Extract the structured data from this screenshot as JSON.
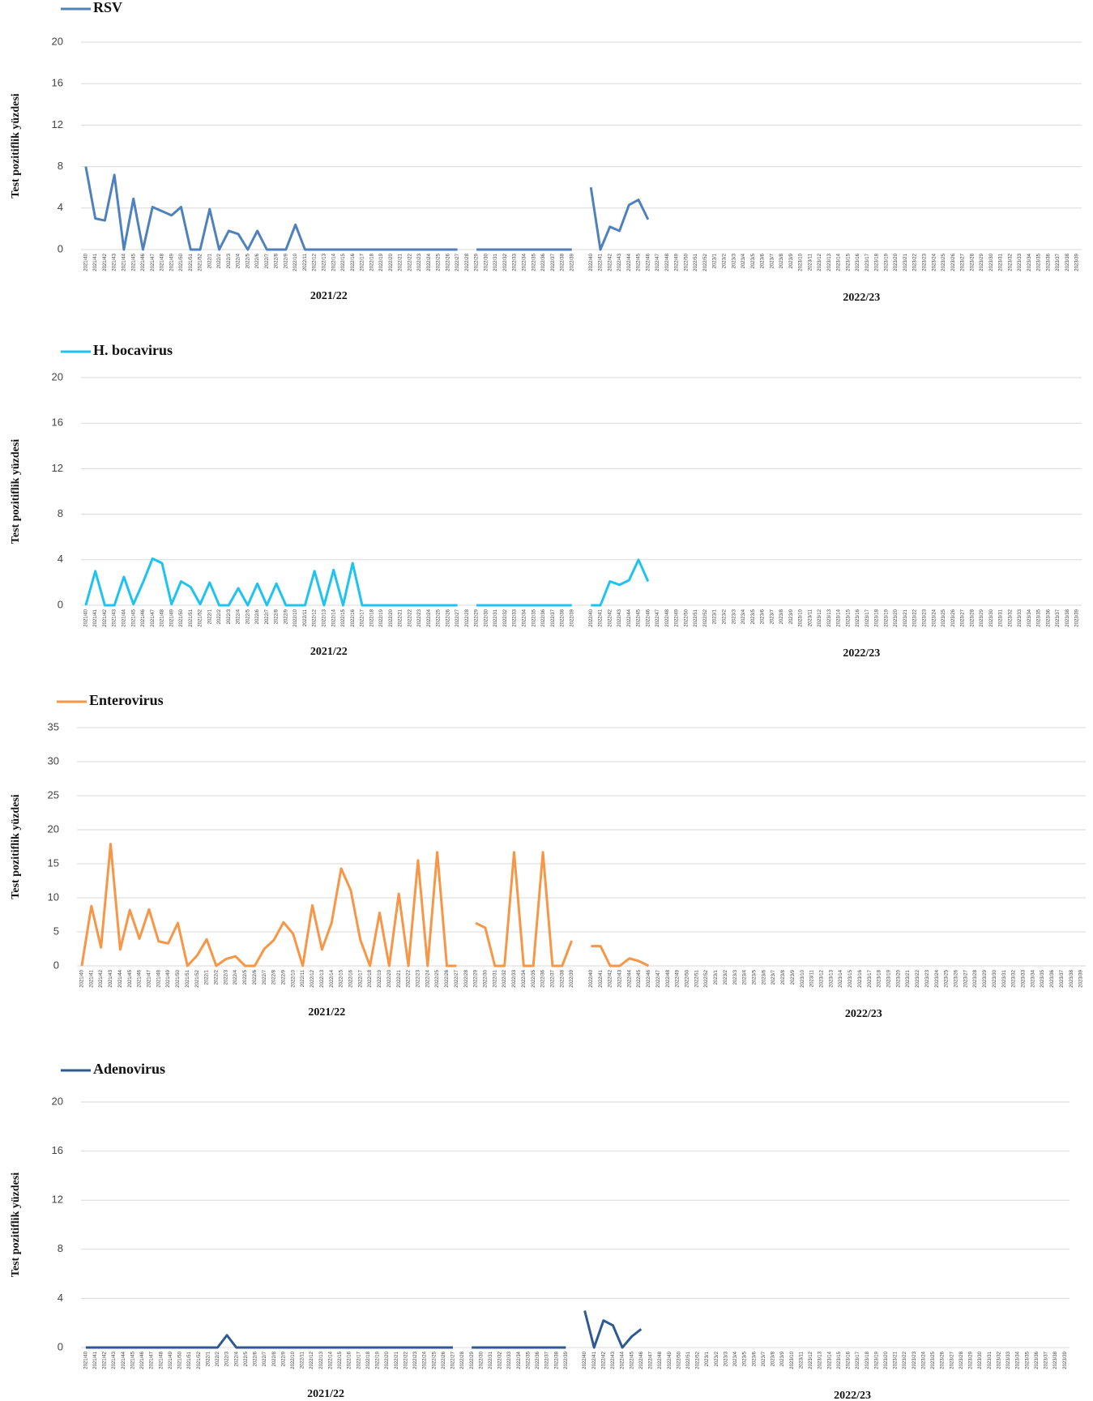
{
  "chart_data": [
    {
      "type": "line",
      "y_label": "Test pozitiflik yüzdesi",
      "annotations": [
        "2021/22",
        "2022/23"
      ],
      "grid": true,
      "ylim": [
        0,
        20
      ],
      "yticks": [
        0,
        4,
        8,
        12,
        16,
        20
      ],
      "categories": [
        "2021/40",
        "2021/41",
        "2021/42",
        "2021/43",
        "2021/44",
        "2021/45",
        "2021/46",
        "2021/47",
        "2021/48",
        "2021/49",
        "2021/50",
        "2021/51",
        "2021/52",
        "2022/1",
        "2022/2",
        "2022/3",
        "2022/4",
        "2022/5",
        "2022/6",
        "2022/7",
        "2022/8",
        "2022/9",
        "2022/10",
        "2022/11",
        "2022/12",
        "2022/13",
        "2022/14",
        "2022/15",
        "2022/16",
        "2022/17",
        "2022/18",
        "2022/19",
        "2022/20",
        "2022/21",
        "2022/22",
        "2022/23",
        "2022/24",
        "2022/25",
        "2022/26",
        "2022/27",
        "2022/28",
        "2022/29",
        "2022/30",
        "2022/31",
        "2022/32",
        "2022/33",
        "2022/34",
        "2022/35",
        "2022/36",
        "2022/37",
        "2022/38",
        "2022/39",
        null,
        "2022/40",
        "2022/41",
        "2022/42",
        "2022/43",
        "2022/44",
        "2022/45",
        "2022/46",
        "2022/47",
        "2022/48",
        "2022/49",
        "2022/50",
        "2022/51",
        "2022/52",
        "2023/1",
        "2023/2",
        "2023/3",
        "2023/4",
        "2023/5",
        "2023/6",
        "2023/7",
        "2023/8",
        "2023/9",
        "2023/10",
        "2023/11",
        "2023/12",
        "2023/13",
        "2023/14",
        "2023/15",
        "2023/16",
        "2023/17",
        "2023/18",
        "2023/19",
        "2023/20",
        "2023/21",
        "2023/22",
        "2023/23",
        "2023/24",
        "2023/25",
        "2023/26",
        "2023/27",
        "2023/28",
        "2023/29",
        "2023/30",
        "2023/31",
        "2023/32",
        "2023/33",
        "2023/34",
        "2023/35",
        "2023/36",
        "2023/37",
        "2023/38",
        "2023/39"
      ],
      "series": [
        {
          "name": "RSV",
          "color": "#4f81bd",
          "values": [
            8,
            3,
            2.8,
            7.2,
            0,
            4.9,
            0,
            4.1,
            3.7,
            3.3,
            4.1,
            0,
            0,
            3.9,
            0,
            1.8,
            1.5,
            0,
            1.8,
            0,
            0,
            0,
            2.4,
            0,
            0,
            0,
            0,
            0,
            0,
            0,
            0,
            0,
            0,
            0,
            0,
            0,
            0,
            0,
            0,
            0,
            null,
            0,
            0,
            0,
            0,
            0,
            0,
            0,
            0,
            0,
            0,
            0,
            null,
            6,
            0,
            2.2,
            1.8,
            4.3,
            4.8,
            2.9,
            null,
            null,
            null,
            null,
            null,
            null,
            null,
            null,
            null,
            null,
            null,
            null,
            null,
            null,
            null,
            null,
            null,
            null,
            null,
            null,
            null,
            null,
            null,
            null,
            null,
            null,
            null,
            null,
            null,
            null,
            null,
            null,
            null,
            null,
            null,
            null,
            null,
            null,
            null,
            null,
            null,
            null,
            null,
            null,
            null
          ]
        }
      ]
    },
    {
      "type": "line",
      "y_label": "Test pozitiflik yüzdesi",
      "annotations": [
        "2021/22",
        "2022/23"
      ],
      "grid": true,
      "ylim": [
        0,
        20
      ],
      "yticks": [
        0,
        4,
        8,
        12,
        16,
        20
      ],
      "categories": [
        "2021/40",
        "2021/41",
        "2021/42",
        "2021/43",
        "2021/44",
        "2021/45",
        "2021/46",
        "2021/47",
        "2021/48",
        "2021/49",
        "2021/50",
        "2021/51",
        "2021/52",
        "2022/1",
        "2022/2",
        "2022/3",
        "2022/4",
        "2022/5",
        "2022/6",
        "2022/7",
        "2022/8",
        "2022/9",
        "2022/10",
        "2022/11",
        "2022/12",
        "2022/13",
        "2022/14",
        "2022/15",
        "2022/16",
        "2022/17",
        "2022/18",
        "2022/19",
        "2022/20",
        "2022/21",
        "2022/22",
        "2022/23",
        "2022/24",
        "2022/25",
        "2022/26",
        "2022/27",
        "2022/28",
        "2022/29",
        "2022/30",
        "2022/31",
        "2022/32",
        "2022/33",
        "2022/34",
        "2022/35",
        "2022/36",
        "2022/37",
        "2022/38",
        "2022/39",
        null,
        "2022/40",
        "2022/41",
        "2022/42",
        "2022/43",
        "2022/44",
        "2022/45",
        "2022/46",
        "2022/47",
        "2022/48",
        "2022/49",
        "2022/50",
        "2022/51",
        "2022/52",
        "2023/1",
        "2023/2",
        "2023/3",
        "2023/4",
        "2023/5",
        "2023/6",
        "2023/7",
        "2023/8",
        "2023/9",
        "2023/10",
        "2023/11",
        "2023/12",
        "2023/13",
        "2023/14",
        "2023/15",
        "2023/16",
        "2023/17",
        "2023/18",
        "2023/19",
        "2023/20",
        "2023/21",
        "2023/22",
        "2023/23",
        "2023/24",
        "2023/25",
        "2023/26",
        "2023/27",
        "2023/28",
        "2023/29",
        "2023/30",
        "2023/31",
        "2023/32",
        "2023/33",
        "2023/34",
        "2023/35",
        "2023/36",
        "2023/37",
        "2023/38",
        "2023/39"
      ],
      "series": [
        {
          "name": "H. bocavirus",
          "color": "#1ec3f0",
          "values": [
            0,
            3,
            0,
            0,
            2.5,
            0.1,
            2,
            4.1,
            3.7,
            0.1,
            2.1,
            1.6,
            0.1,
            2,
            0,
            0,
            1.5,
            0,
            1.9,
            0,
            1.9,
            0,
            0,
            0,
            3,
            0,
            3.1,
            0,
            3.7,
            0,
            0,
            0,
            0,
            0,
            0,
            0,
            0,
            0,
            0,
            0,
            null,
            0,
            0,
            0,
            0,
            0,
            0,
            0,
            0,
            0,
            0,
            0,
            null,
            0,
            0,
            2.1,
            1.8,
            2.2,
            4,
            2.1,
            null,
            null,
            null,
            null,
            null,
            null,
            null,
            null,
            null,
            null,
            null,
            null,
            null,
            null,
            null,
            null,
            null,
            null,
            null,
            null,
            null,
            null,
            null,
            null,
            null,
            null,
            null,
            null,
            null,
            null,
            null,
            null,
            null,
            null,
            null,
            null,
            null,
            null,
            null,
            null,
            null,
            null,
            null,
            null,
            null
          ]
        }
      ]
    },
    {
      "type": "line",
      "y_label": "Test pozitiflik yüzdesi",
      "annotations": [
        "2021/22",
        "2022/23"
      ],
      "grid": true,
      "ylim": [
        0,
        35
      ],
      "yticks": [
        0,
        5,
        10,
        15,
        20,
        25,
        30,
        35
      ],
      "categories": [
        "2021/40",
        "2021/41",
        "2021/42",
        "2021/43",
        "2021/44",
        "2021/45",
        "2021/46",
        "2021/47",
        "2021/48",
        "2021/49",
        "2021/50",
        "2021/51",
        "2021/52",
        "2022/1",
        "2022/2",
        "2022/3",
        "2022/4",
        "2022/5",
        "2022/6",
        "2022/7",
        "2022/8",
        "2022/9",
        "2022/10",
        "2022/11",
        "2022/12",
        "2022/13",
        "2022/14",
        "2022/15",
        "2022/16",
        "2022/17",
        "2022/18",
        "2022/19",
        "2022/20",
        "2022/21",
        "2022/22",
        "2022/23",
        "2022/24",
        "2022/25",
        "2022/26",
        "2022/27",
        "2022/28",
        "2022/29",
        "2022/30",
        "2022/31",
        "2022/32",
        "2022/33",
        "2022/34",
        "2022/35",
        "2022/36",
        "2022/37",
        "2022/38",
        "2022/39",
        null,
        "2022/40",
        "2022/41",
        "2022/42",
        "2022/43",
        "2022/44",
        "2022/45",
        "2022/46",
        "2022/47",
        "2022/48",
        "2022/49",
        "2022/50",
        "2022/51",
        "2022/52",
        "2023/1",
        "2023/2",
        "2023/3",
        "2023/4",
        "2023/5",
        "2023/6",
        "2023/7",
        "2023/8",
        "2023/9",
        "2023/10",
        "2023/11",
        "2023/12",
        "2023/13",
        "2023/14",
        "2023/15",
        "2023/16",
        "2023/17",
        "2023/18",
        "2023/19",
        "2023/20",
        "2023/21",
        "2023/22",
        "2023/23",
        "2023/24",
        "2023/25",
        "2023/26",
        "2023/27",
        "2023/28",
        "2023/29",
        "2023/30",
        "2023/31",
        "2023/32",
        "2023/33",
        "2023/34",
        "2023/35",
        "2023/36",
        "2023/37",
        "2023/38",
        "2023/39"
      ],
      "series": [
        {
          "name": "Enterovirus",
          "color": "#f79646",
          "values": [
            0,
            8.8,
            2.7,
            17.9,
            2.4,
            8.2,
            4,
            8.3,
            3.6,
            3.3,
            6.3,
            0,
            1.5,
            3.9,
            0,
            1,
            1.4,
            0,
            0,
            2.5,
            3.8,
            6.4,
            4.7,
            0,
            8.9,
            2.4,
            6.3,
            14.3,
            11.1,
            3.8,
            0,
            7.8,
            0,
            10.6,
            0,
            15.5,
            0,
            16.7,
            0,
            0,
            null,
            6.3,
            5.6,
            0,
            0,
            16.7,
            0,
            0,
            16.7,
            0,
            0,
            3.7,
            null,
            2.9,
            2.9,
            0,
            0,
            1.1,
            0.7,
            0,
            null,
            null,
            null,
            null,
            null,
            null,
            null,
            null,
            null,
            null,
            null,
            null,
            null,
            null,
            null,
            null,
            null,
            null,
            null,
            null,
            null,
            null,
            null,
            null,
            null,
            null,
            null,
            null,
            null,
            null,
            null,
            null,
            null,
            null,
            null,
            null,
            null,
            null,
            null,
            null,
            null,
            null,
            null,
            null,
            null
          ]
        }
      ]
    },
    {
      "type": "line",
      "y_label": "Test pozitiflik yüzdesi",
      "annotations": [
        "2021/22",
        "2022/23"
      ],
      "grid": true,
      "ylim": [
        0,
        20
      ],
      "yticks": [
        0,
        4,
        8,
        12,
        16,
        20
      ],
      "categories": [
        "2021/40",
        "2021/41",
        "2021/42",
        "2021/43",
        "2021/44",
        "2021/45",
        "2021/46",
        "2021/47",
        "2021/48",
        "2021/49",
        "2021/50",
        "2021/51",
        "2021/52",
        "2022/1",
        "2022/2",
        "2022/3",
        "2022/4",
        "2022/5",
        "2022/6",
        "2022/7",
        "2022/8",
        "2022/9",
        "2022/10",
        "2022/11",
        "2022/12",
        "2022/13",
        "2022/14",
        "2022/15",
        "2022/16",
        "2022/17",
        "2022/18",
        "2022/19",
        "2022/20",
        "2022/21",
        "2022/22",
        "2022/23",
        "2022/24",
        "2022/25",
        "2022/26",
        "2022/27",
        "2022/28",
        "2022/29",
        "2022/30",
        "2022/31",
        "2022/32",
        "2022/33",
        "2022/34",
        "2022/35",
        "2022/36",
        "2022/37",
        "2022/38",
        "2022/39",
        null,
        "2022/40",
        "2022/41",
        "2022/42",
        "2022/43",
        "2022/44",
        "2022/45",
        "2022/46",
        "2022/47",
        "2022/48",
        "2022/49",
        "2022/50",
        "2022/51",
        "2022/52",
        "2023/1",
        "2023/2",
        "2023/3",
        "2023/4",
        "2023/5",
        "2023/6",
        "2023/7",
        "2023/8",
        "2023/9",
        "2023/10",
        "2023/11",
        "2023/12",
        "2023/13",
        "2023/14",
        "2023/15",
        "2023/16",
        "2023/17",
        "2023/18",
        "2023/19",
        "2023/20",
        "2023/21",
        "2023/22",
        "2023/23",
        "2023/24",
        "2023/25",
        "2023/26",
        "2023/27",
        "2023/28",
        "2023/29",
        "2023/30",
        "2023/31",
        "2023/32",
        "2023/33",
        "2023/34",
        "2023/35",
        "2023/36",
        "2023/37",
        "2023/38",
        "2023/39"
      ],
      "series": [
        {
          "name": "Adenovirus",
          "color": "#2e5a94",
          "values": [
            0,
            0,
            0,
            0,
            0,
            0,
            0,
            0,
            0,
            0,
            0,
            0,
            0,
            0,
            0,
            1,
            0,
            0,
            0,
            0,
            0,
            0,
            0,
            0,
            0,
            0,
            0,
            0,
            0,
            0,
            0,
            0,
            0,
            0,
            0,
            0,
            0,
            0,
            0,
            0,
            null,
            0,
            0,
            0,
            0,
            0,
            0,
            0,
            0,
            0,
            0,
            0,
            null,
            3,
            0,
            2.2,
            1.8,
            0,
            0.9,
            1.5,
            null,
            null,
            null,
            null,
            null,
            null,
            null,
            null,
            null,
            null,
            null,
            null,
            null,
            null,
            null,
            null,
            null,
            null,
            null,
            null,
            null,
            null,
            null,
            null,
            null,
            null,
            null,
            null,
            null,
            null,
            null,
            null,
            null,
            null,
            null,
            null,
            null,
            null,
            null,
            null,
            null,
            null,
            null,
            null,
            null
          ]
        }
      ]
    }
  ]
}
